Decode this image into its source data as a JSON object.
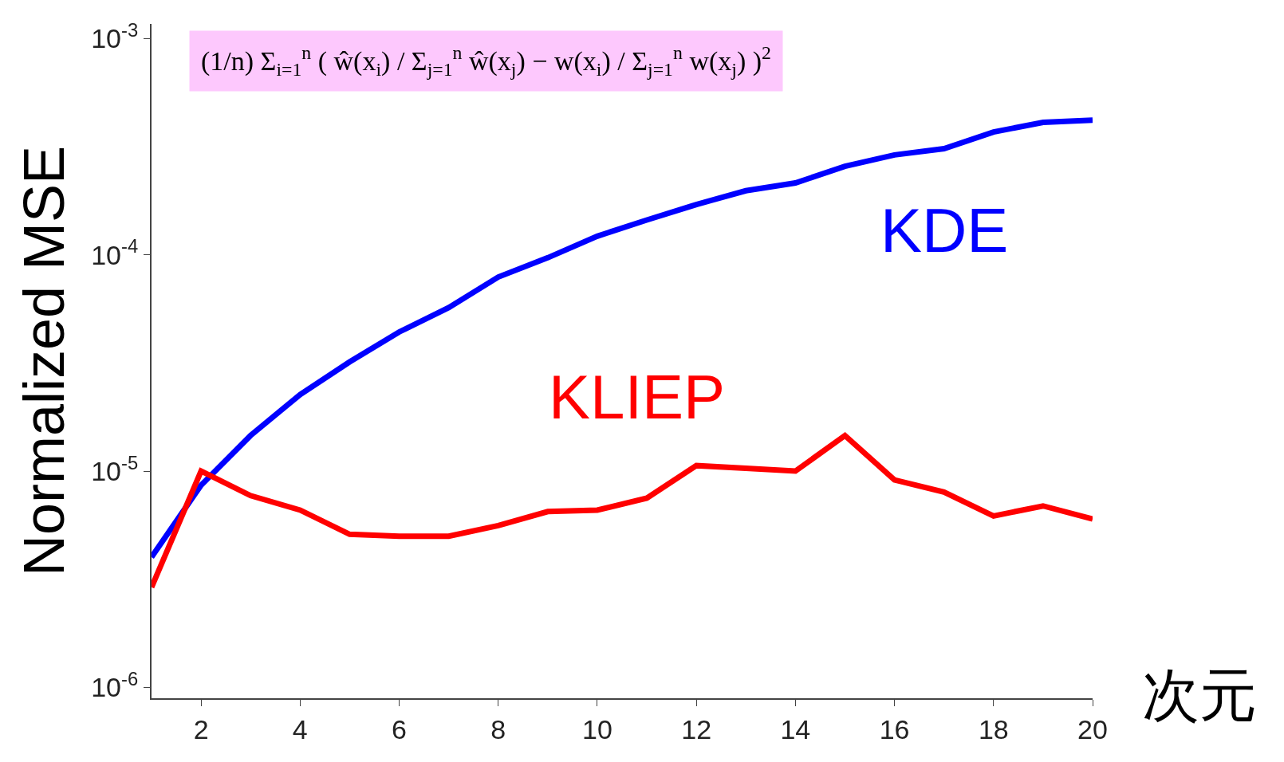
{
  "chart_data": {
    "type": "line",
    "xlabel": "次元",
    "ylabel": "Normalized MSE",
    "x": [
      1,
      2,
      3,
      4,
      5,
      6,
      7,
      8,
      9,
      10,
      11,
      12,
      13,
      14,
      15,
      16,
      17,
      18,
      19,
      20
    ],
    "series": [
      {
        "name": "KDE",
        "color": "#0000ff",
        "values": [
          4e-06,
          8.6e-06,
          1.46e-05,
          2.26e-05,
          3.2e-05,
          4.4e-05,
          5.7e-05,
          7.9e-05,
          9.7e-05,
          0.000122,
          0.000145,
          0.000171,
          0.000198,
          0.000215,
          0.000257,
          0.00029,
          0.00031,
          0.00037,
          0.00041,
          0.00042
        ]
      },
      {
        "name": "KLIEP",
        "color": "#ff0000",
        "values": [
          2.9e-06,
          1e-05,
          7.7e-06,
          6.6e-06,
          5.1e-06,
          5e-06,
          5e-06,
          5.6e-06,
          6.5e-06,
          6.6e-06,
          7.5e-06,
          1.06e-05,
          1.03e-05,
          1e-05,
          1.46e-05,
          9.1e-06,
          8e-06,
          6.2e-06,
          6.9e-06,
          6e-06
        ]
      }
    ],
    "annotations": [
      "(1/n) Σ$_{i=1}$$^{n}$ ( ŵ(x$_{i}$) / Σ$_{j=1}$$^{n}$ ŵ(x$_{j}$) − w(x$_{i}$) / Σ$_{j=1}$$^{n}$ w(x$_{j}$) )$^{2}$"
    ],
    "log": "y",
    "xlim": [
      1,
      20
    ],
    "ylim": [
      8.9e-07,
      0.00117
    ],
    "xticks": [
      2,
      4,
      6,
      8,
      10,
      12,
      14,
      16,
      18,
      20
    ],
    "yticks": [
      {
        "value": 1e-06,
        "label": "10$^{-6}$"
      },
      {
        "value": 1e-05,
        "label": "10$^{-5}$"
      },
      {
        "value": 0.0001,
        "label": "10$^{-4}$"
      },
      {
        "value": 0.001,
        "label": "10$^{-3}$"
      }
    ],
    "legend": false,
    "marker": "none",
    "line_style": "solid"
  }
}
